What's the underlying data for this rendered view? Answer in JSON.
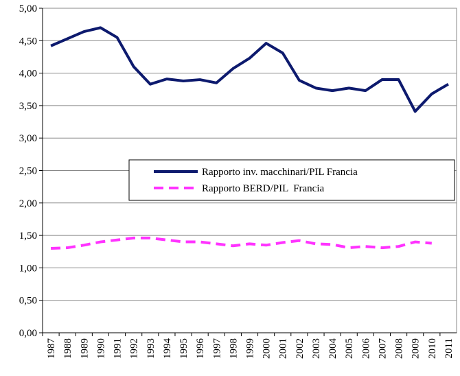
{
  "chart_data": {
    "type": "line",
    "categories": [
      "1987",
      "1988",
      "1989",
      "1990",
      "1991",
      "1992",
      "1993",
      "1994",
      "1995",
      "1996",
      "1997",
      "1998",
      "1999",
      "2000",
      "2001",
      "2002",
      "2003",
      "2004",
      "2005",
      "2006",
      "2007",
      "2008",
      "2009",
      "2010",
      "2011"
    ],
    "series": [
      {
        "name": "Rapporto inv. macchinari/PIL Francia",
        "color": "#0d1a6e",
        "style": "solid",
        "values": [
          4.42,
          4.53,
          4.64,
          4.7,
          4.55,
          4.1,
          3.83,
          3.91,
          3.88,
          3.9,
          3.85,
          4.07,
          4.23,
          4.46,
          4.31,
          3.89,
          3.77,
          3.73,
          3.77,
          3.73,
          3.9,
          3.9,
          3.41,
          3.68,
          3.83
        ]
      },
      {
        "name": "Rapporto BERD/PIL  Francia",
        "color": "#ff33ff",
        "style": "dashed",
        "values": [
          1.3,
          1.31,
          1.35,
          1.4,
          1.43,
          1.46,
          1.46,
          1.43,
          1.4,
          1.4,
          1.37,
          1.34,
          1.37,
          1.35,
          1.39,
          1.42,
          1.37,
          1.36,
          1.31,
          1.33,
          1.31,
          1.33,
          1.4,
          1.38,
          null
        ]
      }
    ],
    "ylim": [
      0,
      5
    ],
    "yticks": [
      {
        "value": 0,
        "label": "0,00"
      },
      {
        "value": 0.5,
        "label": "0,50"
      },
      {
        "value": 1,
        "label": "1,00"
      },
      {
        "value": 1.5,
        "label": "1,50"
      },
      {
        "value": 2,
        "label": "2,00"
      },
      {
        "value": 2.5,
        "label": "2,50"
      },
      {
        "value": 3,
        "label": "3,00"
      },
      {
        "value": 3.5,
        "label": "3,50"
      },
      {
        "value": 4,
        "label": "4,00"
      },
      {
        "value": 4.5,
        "label": "4,50"
      },
      {
        "value": 5,
        "label": "5,00"
      }
    ],
    "grid": true,
    "legend": "right"
  }
}
